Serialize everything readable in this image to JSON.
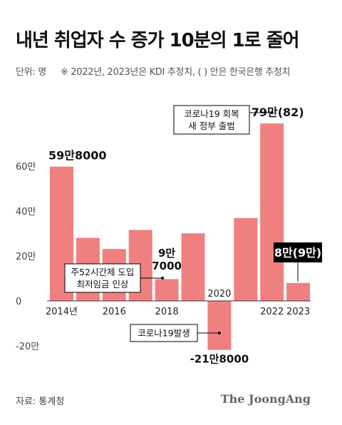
{
  "title": "내년 취업자 수 증가 10분의 1로 줄어",
  "unit_label": "단위: 명",
  "note": "※ 2022년, 2023년은 KDI 추정치, ( ) 안은 한국은행 추정치",
  "source": "자료: 통계청",
  "brand": "The JoongAng",
  "colors": {
    "bar": "#f08080",
    "text": "#111111",
    "callout_bg": "#000000",
    "callout_text": "#ffffff"
  },
  "chart_data": {
    "type": "bar",
    "x": [
      2014,
      2015,
      2016,
      2017,
      2018,
      2019,
      2020,
      2021,
      2022,
      2023
    ],
    "values": [
      598000,
      281000,
      231000,
      316000,
      97000,
      301000,
      -218000,
      369000,
      790000,
      80000
    ],
    "ylim": [
      -250000,
      900000
    ],
    "y_ticks": [
      {
        "value": 600000,
        "label": "60만"
      },
      {
        "value": 400000,
        "label": "40만"
      },
      {
        "value": 200000,
        "label": "20만"
      },
      {
        "value": 0,
        "label": "0"
      },
      {
        "value": -200000,
        "label": "-20만"
      }
    ],
    "x_tick_labels": [
      {
        "x": 2014,
        "label": "2014년"
      },
      {
        "x": 2016,
        "label": "2016"
      },
      {
        "x": 2018,
        "label": "2018"
      },
      {
        "x": 2020,
        "label": "2020"
      },
      {
        "x": 2022,
        "label": "2022"
      },
      {
        "x": 2023,
        "label": "2023"
      }
    ],
    "data_labels": [
      {
        "x": 2014,
        "lines": [
          "59만8000"
        ]
      },
      {
        "x": 2018,
        "lines": [
          "9만",
          "7000"
        ]
      },
      {
        "x": 2020,
        "lines": [
          "-21만8000"
        ]
      },
      {
        "x": 2022,
        "lines": [
          "79만(82)"
        ]
      },
      {
        "x": 2023,
        "lines": [
          "8만(9만)"
        ],
        "highlight": true
      }
    ],
    "annotations": [
      {
        "x": 2018,
        "lines": [
          "주52시간제 도입",
          "최저임금 인상"
        ]
      },
      {
        "x": 2020,
        "lines": [
          "코로나19발생"
        ]
      },
      {
        "x": 2022,
        "lines": [
          "코로나19 회복",
          "새 정부 출범"
        ]
      }
    ],
    "grid": false,
    "legend": "none"
  }
}
